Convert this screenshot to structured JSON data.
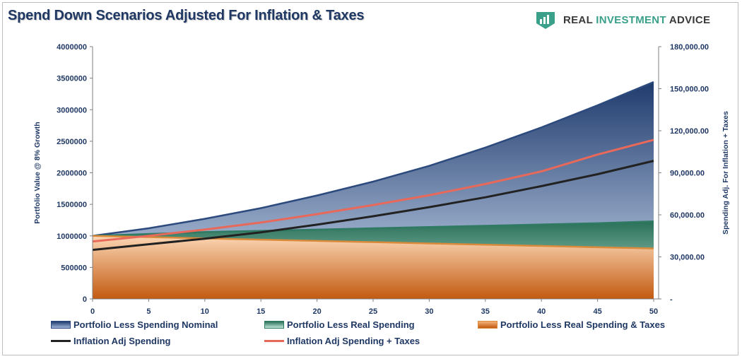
{
  "title": "Spend Down Scenarios Adjusted For Inflation & Taxes",
  "brand": {
    "name_part1": "REAL ",
    "name_part2": "INVESTMENT",
    "name_part3": " ADVICE",
    "icon": "brand-logo-icon"
  },
  "colors": {
    "nominal": "#2c4a7d",
    "real": "#2f7a62",
    "taxes": "#d98a3a",
    "infl": "#222222",
    "infl_tax": "#e8685a",
    "axis_text": "#1f3864"
  },
  "chart_data": {
    "type": "area",
    "x_range": [
      0,
      50
    ],
    "x_ticks": [
      0,
      5,
      10,
      15,
      20,
      25,
      30,
      35,
      40,
      45,
      50
    ],
    "y_left": {
      "label": "Portfolio Value @ 8% Growth",
      "range": [
        0,
        4000000
      ],
      "ticks": [
        0,
        500000,
        1000000,
        1500000,
        2000000,
        2500000,
        3000000,
        3500000,
        4000000
      ],
      "tick_labels": [
        "0",
        "500000",
        "1000000",
        "1500000",
        "2000000",
        "2500000",
        "3000000",
        "3500000",
        "4000000"
      ]
    },
    "y_right": {
      "label": "Spending Adj. For Inflation + Taxes",
      "range": [
        0,
        180000
      ],
      "ticks": [
        0,
        30000,
        60000,
        90000,
        120000,
        150000,
        180000
      ],
      "tick_labels": [
        "-",
        "30,000.00",
        "60,000.00",
        "90,000.00",
        "120,000.00",
        "150,000.00",
        "180,000.00"
      ]
    },
    "series": [
      {
        "name": "Portfolio Less Spending Nominal",
        "kind": "area",
        "axis": "left",
        "x": [
          0,
          5,
          10,
          15,
          20,
          25,
          30,
          35,
          40,
          45,
          50
        ],
        "values": [
          1000000,
          1120000,
          1270000,
          1440000,
          1640000,
          1860000,
          2110000,
          2400000,
          2720000,
          3070000,
          3440000
        ]
      },
      {
        "name": "Portfolio Less Real Spending",
        "kind": "area",
        "axis": "left",
        "x": [
          0,
          5,
          10,
          15,
          20,
          25,
          30,
          35,
          40,
          45,
          50
        ],
        "values": [
          1000000,
          1030000,
          1060000,
          1080000,
          1100000,
          1120000,
          1140000,
          1160000,
          1180000,
          1200000,
          1230000
        ]
      },
      {
        "name": "Portfolio Less Real Spending & Taxes",
        "kind": "area",
        "axis": "left",
        "x": [
          0,
          5,
          10,
          15,
          20,
          25,
          30,
          35,
          40,
          45,
          50
        ],
        "values": [
          1000000,
          980000,
          960000,
          940000,
          920000,
          900000,
          880000,
          860000,
          840000,
          820000,
          800000
        ]
      },
      {
        "name": "Inflation Adj Spending",
        "kind": "line",
        "axis": "right",
        "x": [
          0,
          5,
          10,
          15,
          20,
          25,
          30,
          35,
          40,
          45,
          50
        ],
        "values": [
          35000,
          39000,
          43000,
          47500,
          53000,
          59000,
          65500,
          72500,
          80500,
          89000,
          98500
        ]
      },
      {
        "name": "Inflation Adj Spending + Taxes",
        "kind": "line",
        "axis": "right",
        "x": [
          0,
          5,
          10,
          15,
          20,
          25,
          30,
          35,
          40,
          45,
          50
        ],
        "values": [
          41000,
          45000,
          49500,
          54500,
          60500,
          67000,
          74000,
          82000,
          91000,
          103000,
          113500
        ]
      }
    ],
    "legend_position": "bottom",
    "grid": false
  }
}
